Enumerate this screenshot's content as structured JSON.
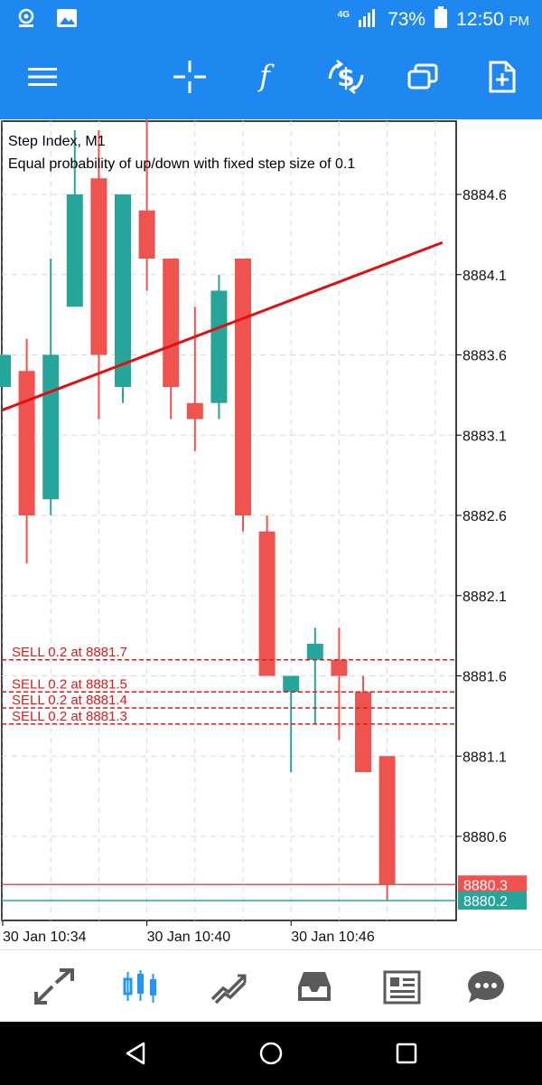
{
  "status_bar": {
    "network": "4G",
    "battery": "73%",
    "time": "12:50",
    "ampm": "PM",
    "icons": [
      "notification-icon",
      "gallery-icon",
      "signal-icon",
      "battery-icon"
    ]
  },
  "toolbar": {
    "buttons": [
      "menu-icon",
      "crosshair-icon",
      "indicators-icon",
      "trade-icon",
      "windows-icon",
      "new-order-icon"
    ]
  },
  "chart": {
    "title": "Step Index, M1",
    "subtitle": "Equal probability of up/down with fixed step size of 0.1",
    "colors": {
      "bull": "#26a69a",
      "bear": "#ef5350",
      "trendline": "#e01010",
      "order": "#d81b1b",
      "grid": "#d8d8d8"
    }
  },
  "chart_data": {
    "type": "candlestick",
    "symbol": "Step Index",
    "timeframe": "M1",
    "y_ticks": [
      8884.6,
      8884.1,
      8883.6,
      8883.1,
      8882.6,
      8882.1,
      8881.6,
      8881.1,
      8880.6
    ],
    "y_tick_labels": [
      "8884.6",
      "8884.1",
      "8883.6",
      "8883.1",
      "8882.6",
      "8882.1",
      "8881.6",
      "8881.1",
      "8880.6"
    ],
    "ylim": [
      8880.08,
      8885.2
    ],
    "x_labels": [
      "30 Jan 10:34",
      "30 Jan 10:40",
      "30 Jan 10:46"
    ],
    "candles": [
      {
        "o": 8883.4,
        "h": 8883.6,
        "l": 8883.4,
        "c": 8883.6
      },
      {
        "o": 8883.5,
        "h": 8883.7,
        "l": 8882.3,
        "c": 8882.6
      },
      {
        "o": 8882.7,
        "h": 8884.2,
        "l": 8882.6,
        "c": 8883.6
      },
      {
        "o": 8883.9,
        "h": 8885.0,
        "l": 8883.9,
        "c": 8884.6
      },
      {
        "o": 8884.7,
        "h": 8885.0,
        "l": 8883.2,
        "c": 8883.6
      },
      {
        "o": 8883.4,
        "h": 8884.6,
        "l": 8883.3,
        "c": 8884.6
      },
      {
        "o": 8884.5,
        "h": 8885.2,
        "l": 8884.0,
        "c": 8884.2
      },
      {
        "o": 8884.2,
        "h": 8884.2,
        "l": 8883.2,
        "c": 8883.4
      },
      {
        "o": 8883.3,
        "h": 8883.9,
        "l": 8883.0,
        "c": 8883.2
      },
      {
        "o": 8883.3,
        "h": 8884.1,
        "l": 8883.2,
        "c": 8884.0
      },
      {
        "o": 8884.2,
        "h": 8884.2,
        "l": 8882.5,
        "c": 8882.6
      },
      {
        "o": 8882.5,
        "h": 8882.6,
        "l": 8881.6,
        "c": 8881.6
      },
      {
        "o": 8881.5,
        "h": 8881.6,
        "l": 8881.0,
        "c": 8881.6
      },
      {
        "o": 8881.7,
        "h": 8881.9,
        "l": 8881.3,
        "c": 8881.8
      },
      {
        "o": 8881.7,
        "h": 8881.9,
        "l": 8881.2,
        "c": 8881.6
      },
      {
        "o": 8881.5,
        "h": 8881.6,
        "l": 8881.0,
        "c": 8881.0
      },
      {
        "o": 8881.1,
        "h": 8881.1,
        "l": 8880.2,
        "c": 8880.3
      }
    ],
    "trendline": [
      {
        "candle": -1,
        "price": 8883.2
      },
      {
        "candle": 18.3,
        "price": 8884.3
      }
    ],
    "orders": [
      {
        "label": "SELL 0.2 at 8881.7",
        "price": 8881.7
      },
      {
        "label": "SELL 0.2 at 8881.5",
        "price": 8881.5
      },
      {
        "label": "SELL 0.2 at 8881.4",
        "price": 8881.4
      },
      {
        "label": "SELL 0.2 at 8881.3",
        "price": 8881.3
      }
    ],
    "price_lines": [
      {
        "label": "8880.3",
        "price": 8880.3,
        "color": "#ef5350"
      },
      {
        "label": "8880.2",
        "price": 8880.2,
        "color": "#26a69a"
      }
    ]
  },
  "bottom_nav": {
    "items": [
      "quotes-icon",
      "chart-icon",
      "trade-icon",
      "history-icon",
      "news-icon",
      "messages-icon"
    ],
    "active": "chart-icon"
  }
}
